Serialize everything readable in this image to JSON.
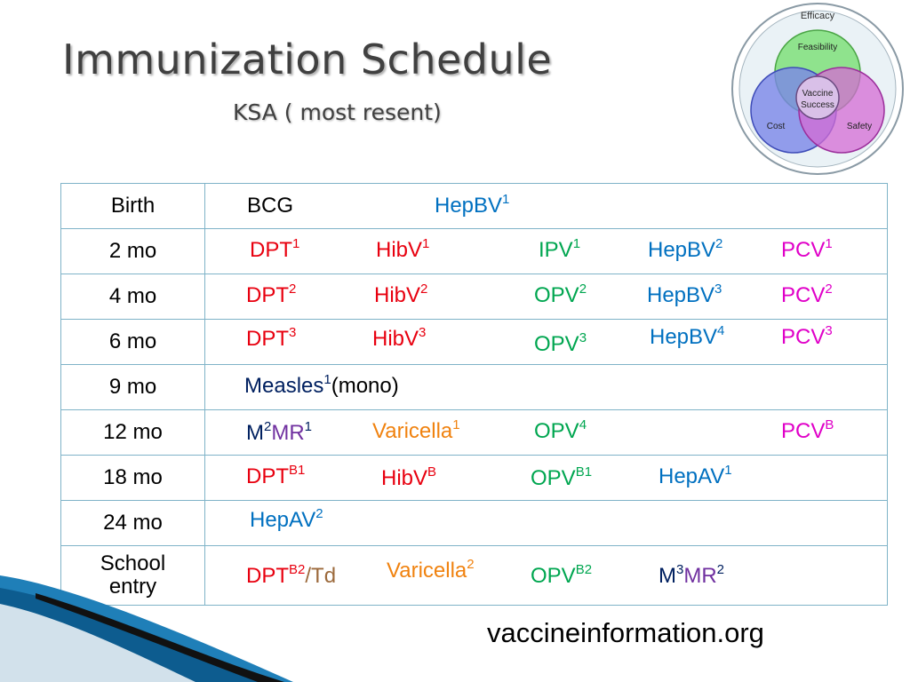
{
  "title": "Immunization Schedule",
  "subtitle": "KSA ( most resent)",
  "venn": {
    "outer": "Efficacy",
    "top": "Feasibility",
    "center_line1": "Vaccine",
    "center_line2": "Success",
    "left": "Cost",
    "right": "Safety"
  },
  "rows": [
    {
      "age": "Birth",
      "items": [
        {
          "text": "BCG",
          "sup": ""
        },
        {
          "text": "HepBV",
          "sup": "1"
        }
      ]
    },
    {
      "age": "2 mo",
      "items": [
        {
          "text": "DPT",
          "sup": "1"
        },
        {
          "text": "HibV",
          "sup": "1"
        },
        {
          "text": "IPV",
          "sup": "1"
        },
        {
          "text": "HepBV",
          "sup": "2"
        },
        {
          "text": "PCV",
          "sup": "1"
        }
      ]
    },
    {
      "age": "4 mo",
      "items": [
        {
          "text": "DPT",
          "sup": "2"
        },
        {
          "text": "HibV",
          "sup": "2"
        },
        {
          "text": "OPV",
          "sup": "2"
        },
        {
          "text": "HepBV",
          "sup": "3"
        },
        {
          "text": "PCV",
          "sup": "2"
        }
      ]
    },
    {
      "age": "6 mo",
      "items": [
        {
          "text": "DPT",
          "sup": "3"
        },
        {
          "text": "HibV",
          "sup": "3"
        },
        {
          "text": "OPV",
          "sup": "3"
        },
        {
          "text": "HepBV",
          "sup": "4"
        },
        {
          "text": "PCV",
          "sup": "3"
        }
      ]
    },
    {
      "age": "9 mo",
      "items": [
        {
          "text": "Measles",
          "sup": "1",
          "after": "(mono)"
        }
      ]
    },
    {
      "age": "12 mo",
      "items": [
        {
          "text": "M",
          "sup": "2",
          "after": "MR",
          "sup2": "1"
        },
        {
          "text": "Varicella",
          "sup": "1"
        },
        {
          "text": "OPV",
          "sup": "4"
        },
        {
          "text": "PCV",
          "sup": "B"
        }
      ]
    },
    {
      "age": "18 mo",
      "items": [
        {
          "text": "DPT",
          "sup": "B1"
        },
        {
          "text": "HibV",
          "sup": "B"
        },
        {
          "text": "OPV",
          "sup": "B1"
        },
        {
          "text": "HepAV",
          "sup": "1"
        }
      ]
    },
    {
      "age": "24 mo",
      "items": [
        {
          "text": "HepAV",
          "sup": "2"
        }
      ]
    },
    {
      "age_line1": "School",
      "age_line2": "entry",
      "items": [
        {
          "text": "DPT",
          "sup": "B2",
          "after": "/Td"
        },
        {
          "text": "Varicella",
          "sup": "2"
        },
        {
          "text": "OPV",
          "sup": "B2"
        },
        {
          "text": "M",
          "sup": "3",
          "after": "MR",
          "sup2": "2"
        }
      ]
    }
  ],
  "source": "vaccineinformation.org",
  "colors": {
    "dpt": "#e8000f",
    "hib": "#e8000f",
    "hepb": "#0070c0",
    "polio": "#00a650",
    "pcv": "#e000c8",
    "varicella": "#f0820f",
    "measles": "#002060",
    "mmr": "#7030a0",
    "border": "#7fb3c8"
  }
}
